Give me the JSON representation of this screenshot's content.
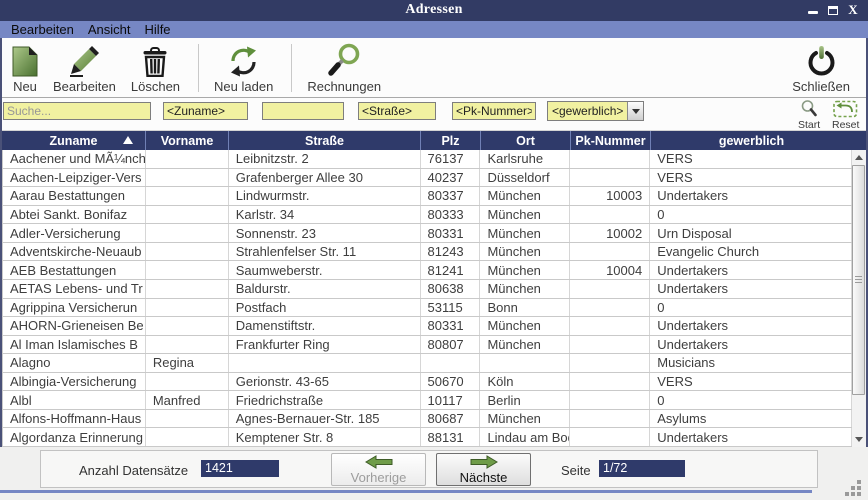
{
  "window": {
    "title": "Adressen",
    "controls": {
      "minimize": "minimize",
      "maximize": "maximize",
      "close_glyph": "X"
    }
  },
  "menubar": {
    "items": [
      "Bearbeiten",
      "Ansicht",
      "Hilfe"
    ]
  },
  "toolbar": {
    "items": [
      {
        "label": "Neu",
        "icon": "new-document-icon"
      },
      {
        "label": "Bearbeiten",
        "icon": "edit-pen-icon"
      },
      {
        "label": "Löschen",
        "icon": "trash-icon"
      },
      {
        "label": "Neu laden",
        "icon": "refresh-icon"
      },
      {
        "label": "Rechnungen",
        "icon": "magnifier-icon"
      }
    ],
    "close": {
      "label": "Schließen",
      "icon": "power-icon"
    }
  },
  "search": {
    "placeholder": "Suche...",
    "zuname": "<Zuname>",
    "vorname": "<Vorname>",
    "strasse": "<Straße>",
    "pknummer": "<Pk-Nummer>",
    "gewerblich": "<gewerblich>",
    "start_label": "Start",
    "reset_label": "Reset"
  },
  "table": {
    "columns": [
      "Zuname",
      "Vorname",
      "Straße",
      "Plz",
      "Ort",
      "Pk-Nummer",
      "gewerblich"
    ],
    "sort_column_index": 0,
    "sort_direction": "asc",
    "rows": [
      [
        "Aachener und MÃ¼nch",
        "",
        "Leibnitzstr. 2",
        "76137",
        "Karlsruhe",
        "",
        "VERS"
      ],
      [
        "Aachen-Leipziger-Vers",
        "",
        "Grafenberger Allee 30",
        "40237",
        "Düsseldorf",
        "",
        "VERS"
      ],
      [
        "Aarau Bestattungen",
        "",
        "Lindwurmstr.",
        "80337",
        "München",
        "10003",
        "Undertakers"
      ],
      [
        "Abtei Sankt. Bonifaz",
        "",
        "Karlstr. 34",
        "80333",
        "München",
        "",
        "0"
      ],
      [
        "Adler-Versicherung",
        "",
        "Sonnenstr. 23",
        "80331",
        "München",
        "10002",
        "Urn Disposal"
      ],
      [
        "Adventskirche-Neuaub",
        "",
        "Strahlenfelser Str. 11",
        "81243",
        "München",
        "",
        "Evangelic Church"
      ],
      [
        "AEB Bestattungen",
        "",
        "Saumweberstr.",
        "81241",
        "München",
        "10004",
        "Undertakers"
      ],
      [
        "AETAS Lebens- und Tr",
        "",
        "Baldurstr.",
        "80638",
        "München",
        "",
        "Undertakers"
      ],
      [
        "Agrippina Versicherun",
        "",
        "Postfach",
        "53115",
        "Bonn",
        "",
        "0"
      ],
      [
        "AHORN-Grieneisen Be",
        "",
        "Damenstiftstr.",
        "80331",
        "München",
        "",
        "Undertakers"
      ],
      [
        "Al Iman Islamisches B",
        "",
        "Frankfurter Ring",
        "80807",
        "München",
        "",
        "Undertakers"
      ],
      [
        "Alagno",
        "Regina",
        "",
        "",
        "",
        "",
        "Musicians"
      ],
      [
        "Albingia-Versicherung",
        "",
        "Gerionstr. 43-65",
        "50670",
        "Köln",
        "",
        "VERS"
      ],
      [
        "Albl",
        "Manfred",
        "Friedrichstraße",
        "10117",
        "Berlin",
        "",
        "0"
      ],
      [
        "Alfons-Hoffmann-Haus",
        "",
        "Agnes-Bernauer-Str. 185",
        "80687",
        "München",
        "",
        "Asylums"
      ],
      [
        "Algordanza Erinnerung",
        "",
        "Kemptener Str. 8",
        "88131",
        "Lindau am Bod",
        "",
        "Undertakers"
      ]
    ]
  },
  "footer": {
    "count_label": "Anzahl Datensätze",
    "count_value": "1421",
    "prev_label": "Vorherige",
    "next_label": "Nächste",
    "page_label": "Seite",
    "page_value": "1/72"
  },
  "colors": {
    "titlebar_navy": "#323B64",
    "menubar_blue": "#7687C4",
    "header_navy": "#2F3A6A",
    "accent_green": "#6F9C49",
    "field_yellow": "#F1F1A1",
    "value_box_navy": "#2F3A6A"
  }
}
